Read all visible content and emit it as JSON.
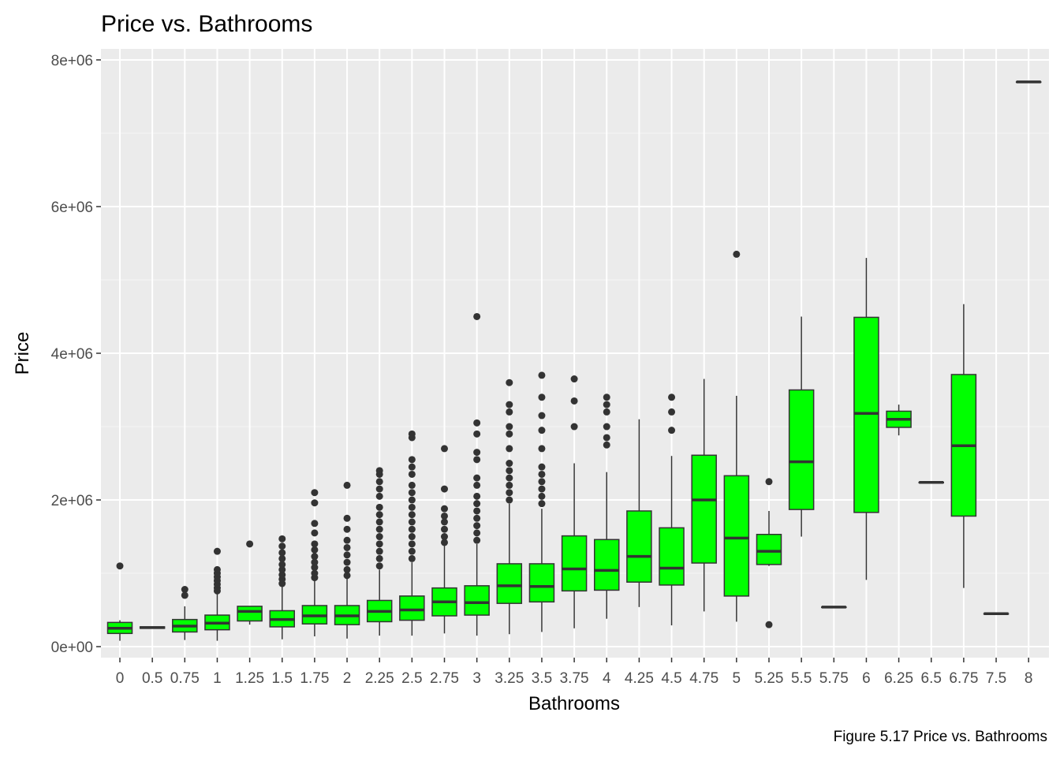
{
  "chart_data": {
    "type": "boxplot",
    "title": "Price vs. Bathrooms",
    "xlabel": "Bathrooms",
    "ylabel": "Price",
    "caption": "Figure 5.17 Price vs. Bathrooms",
    "ylim": [
      -150000,
      8150000
    ],
    "y_ticks": [
      0,
      2000000,
      4000000,
      6000000,
      8000000
    ],
    "y_tick_labels": [
      "0e+00",
      "2e+06",
      "4e+06",
      "6e+06",
      "8e+06"
    ],
    "grid": true,
    "legend": "none",
    "colors": {
      "box_fill": "#00ff00",
      "box_stroke": "#333333",
      "panel_bg": "#ebebeb",
      "grid_major": "#ffffff",
      "tick_text": "#4d4d4d"
    },
    "categories": [
      "0",
      "0.5",
      "0.75",
      "1",
      "1.25",
      "1.5",
      "1.75",
      "2",
      "2.25",
      "2.5",
      "2.75",
      "3",
      "3.25",
      "3.5",
      "3.75",
      "4",
      "4.25",
      "4.5",
      "4.75",
      "5",
      "5.25",
      "5.5",
      "5.75",
      "6",
      "6.25",
      "6.5",
      "6.75",
      "7.5",
      "8"
    ],
    "boxes": [
      {
        "whisker_low": 80000,
        "q1": 180000,
        "median": 250000,
        "q3": 330000,
        "whisker_high": 360000,
        "outliers": [
          1100000
        ]
      },
      {
        "whisker_low": 250000,
        "q1": 250000,
        "median": 260000,
        "q3": 270000,
        "whisker_high": 270000,
        "outliers": []
      },
      {
        "whisker_low": 90000,
        "q1": 200000,
        "median": 280000,
        "q3": 370000,
        "whisker_high": 550000,
        "outliers": [
          700000,
          780000
        ]
      },
      {
        "whisker_low": 80000,
        "q1": 230000,
        "median": 320000,
        "q3": 430000,
        "whisker_high": 720000,
        "outliers": [
          760000,
          800000,
          850000,
          900000,
          950000,
          1000000,
          1050000,
          1300000
        ]
      },
      {
        "whisker_low": 300000,
        "q1": 350000,
        "median": 480000,
        "q3": 550000,
        "whisker_high": 550000,
        "outliers": [
          1400000
        ]
      },
      {
        "whisker_low": 100000,
        "q1": 270000,
        "median": 370000,
        "q3": 490000,
        "whisker_high": 820000,
        "outliers": [
          860000,
          920000,
          980000,
          1050000,
          1120000,
          1200000,
          1280000,
          1370000,
          1470000
        ]
      },
      {
        "whisker_low": 140000,
        "q1": 310000,
        "median": 420000,
        "q3": 560000,
        "whisker_high": 900000,
        "outliers": [
          940000,
          1000000,
          1080000,
          1150000,
          1230000,
          1320000,
          1400000,
          1550000,
          1680000,
          1960000,
          2100000
        ]
      },
      {
        "whisker_low": 110000,
        "q1": 300000,
        "median": 420000,
        "q3": 560000,
        "whisker_high": 930000,
        "outliers": [
          970000,
          1050000,
          1150000,
          1250000,
          1350000,
          1450000,
          1600000,
          1750000,
          2200000
        ]
      },
      {
        "whisker_low": 150000,
        "q1": 340000,
        "median": 480000,
        "q3": 630000,
        "whisker_high": 1050000,
        "outliers": [
          1100000,
          1200000,
          1300000,
          1400000,
          1500000,
          1600000,
          1700000,
          1800000,
          1900000,
          2050000,
          2150000,
          2250000,
          2350000,
          2400000
        ]
      },
      {
        "whisker_low": 150000,
        "q1": 360000,
        "median": 500000,
        "q3": 690000,
        "whisker_high": 1150000,
        "outliers": [
          1200000,
          1300000,
          1400000,
          1500000,
          1600000,
          1700000,
          1800000,
          1900000,
          2000000,
          2100000,
          2200000,
          2350000,
          2450000,
          2550000,
          2850000,
          2900000
        ]
      },
      {
        "whisker_low": 180000,
        "q1": 420000,
        "median": 610000,
        "q3": 800000,
        "whisker_high": 1380000,
        "outliers": [
          1420000,
          1500000,
          1600000,
          1700000,
          1780000,
          1880000,
          2150000,
          2700000
        ]
      },
      {
        "whisker_low": 150000,
        "q1": 430000,
        "median": 600000,
        "q3": 830000,
        "whisker_high": 1400000,
        "outliers": [
          1450000,
          1550000,
          1650000,
          1750000,
          1850000,
          1950000,
          2050000,
          2200000,
          2300000,
          2550000,
          2650000,
          2900000,
          3050000,
          4500000
        ]
      },
      {
        "whisker_low": 170000,
        "q1": 590000,
        "median": 830000,
        "q3": 1130000,
        "whisker_high": 1950000,
        "outliers": [
          2000000,
          2100000,
          2200000,
          2300000,
          2400000,
          2500000,
          2700000,
          2900000,
          3000000,
          3200000,
          3300000,
          3600000
        ]
      },
      {
        "whisker_low": 200000,
        "q1": 610000,
        "median": 820000,
        "q3": 1130000,
        "whisker_high": 1880000,
        "outliers": [
          1950000,
          2050000,
          2150000,
          2250000,
          2350000,
          2450000,
          2700000,
          2950000,
          3150000,
          3400000,
          3700000
        ]
      },
      {
        "whisker_low": 250000,
        "q1": 760000,
        "median": 1060000,
        "q3": 1510000,
        "whisker_high": 2500000,
        "outliers": [
          3000000,
          3350000,
          3650000
        ]
      },
      {
        "whisker_low": 380000,
        "q1": 770000,
        "median": 1040000,
        "q3": 1460000,
        "whisker_high": 2380000,
        "outliers": [
          2750000,
          2850000,
          3000000,
          3200000,
          3300000,
          3400000
        ]
      },
      {
        "whisker_low": 540000,
        "q1": 880000,
        "median": 1230000,
        "q3": 1850000,
        "whisker_high": 3100000,
        "outliers": []
      },
      {
        "whisker_low": 290000,
        "q1": 840000,
        "median": 1070000,
        "q3": 1620000,
        "whisker_high": 2600000,
        "outliers": [
          2950000,
          3200000,
          3400000
        ]
      },
      {
        "whisker_low": 480000,
        "q1": 1140000,
        "median": 2000000,
        "q3": 2610000,
        "whisker_high": 3650000,
        "outliers": []
      },
      {
        "whisker_low": 340000,
        "q1": 690000,
        "median": 1480000,
        "q3": 2330000,
        "whisker_high": 3420000,
        "outliers": [
          5350000
        ]
      },
      {
        "whisker_low": 1100000,
        "q1": 1120000,
        "median": 1300000,
        "q3": 1530000,
        "whisker_high": 1850000,
        "outliers": [
          2250000,
          300000
        ]
      },
      {
        "whisker_low": 1500000,
        "q1": 1870000,
        "median": 2520000,
        "q3": 3500000,
        "whisker_high": 4500000,
        "outliers": []
      },
      {
        "whisker_low": 540000,
        "q1": 540000,
        "median": 540000,
        "q3": 540000,
        "whisker_high": 540000,
        "outliers": []
      },
      {
        "whisker_low": 910000,
        "q1": 1830000,
        "median": 3180000,
        "q3": 4490000,
        "whisker_high": 5300000,
        "outliers": []
      },
      {
        "whisker_low": 2880000,
        "q1": 2990000,
        "median": 3100000,
        "q3": 3210000,
        "whisker_high": 3300000,
        "outliers": []
      },
      {
        "whisker_low": 2240000,
        "q1": 2240000,
        "median": 2240000,
        "q3": 2240000,
        "whisker_high": 2240000,
        "outliers": []
      },
      {
        "whisker_low": 800000,
        "q1": 1780000,
        "median": 2740000,
        "q3": 3710000,
        "whisker_high": 4670000,
        "outliers": []
      },
      {
        "whisker_low": 450000,
        "q1": 450000,
        "median": 450000,
        "q3": 450000,
        "whisker_high": 450000,
        "outliers": []
      },
      {
        "whisker_low": 7700000,
        "q1": 7700000,
        "median": 7700000,
        "q3": 7700000,
        "whisker_high": 7700000,
        "outliers": []
      }
    ]
  }
}
